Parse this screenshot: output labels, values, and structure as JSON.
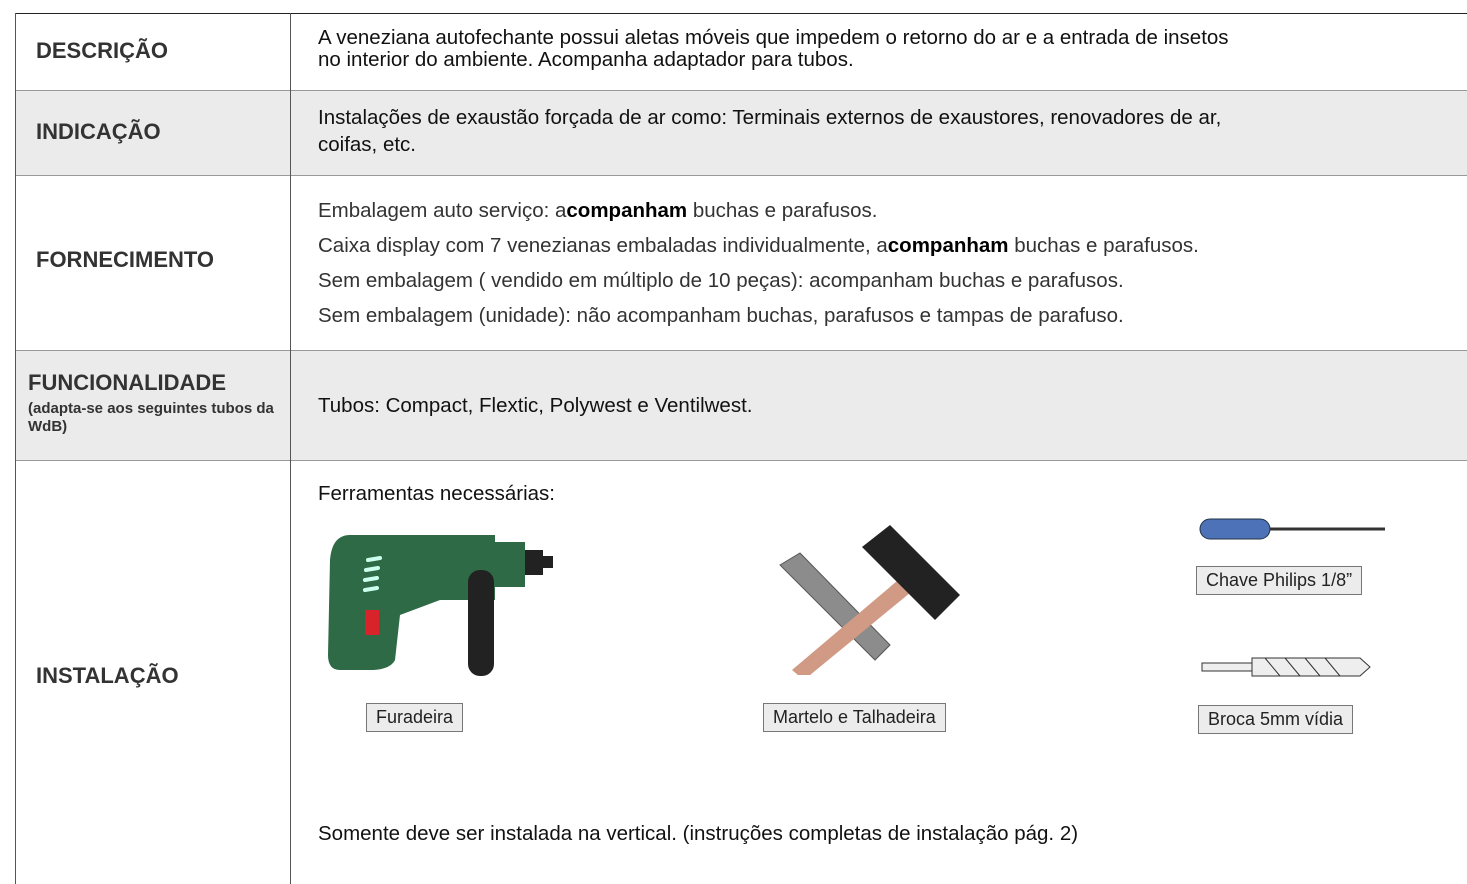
{
  "table": {
    "rows": [
      {
        "label": "DESCRIÇÃO",
        "lines": [
          "A veneziana autofechante possui aletas móveis que impedem o retorno do ar e a entrada de insetos",
          "no interior do ambiente. Acompanha adaptador para tubos."
        ]
      },
      {
        "label": "INDICAÇÃO",
        "lines": [
          "Instalações de exaustão forçada de ar como: Terminais externos de exaustores, renovadores de ar,",
          "coifas, etc."
        ]
      },
      {
        "label": "FORNECIMENTO",
        "lines": [
          {
            "before": "Embalagem auto serviço: a",
            "bold": "companham",
            "after": " buchas e parafusos."
          },
          {
            "before": "Caixa display com 7 venezianas embaladas individualmente, a",
            "bold": "companham",
            "after": " buchas e parafusos."
          },
          "Sem embalagem ( vendido em múltiplo de 10 peças):  acompanham buchas e parafusos.",
          "Sem embalagem (unidade): não acompanham buchas, parafusos e tampas de parafuso."
        ]
      },
      {
        "label": "FUNCIONALIDADE",
        "sublabel": "(adapta-se aos seguintes tubos da WdB)",
        "lines": [
          "Tubos: Compact, Flextic, Polywest e Ventilwest."
        ]
      },
      {
        "label": "INSTALAÇÃO",
        "heading": "Ferramentas necessárias:",
        "tools": [
          "Furadeira",
          "Martelo e Talhadeira",
          "Chave Philips 1/8”",
          "Broca 5mm vídia"
        ],
        "note": "Somente deve ser instalada na vertical. (instruções completas de instalação pág. 2)"
      }
    ]
  }
}
